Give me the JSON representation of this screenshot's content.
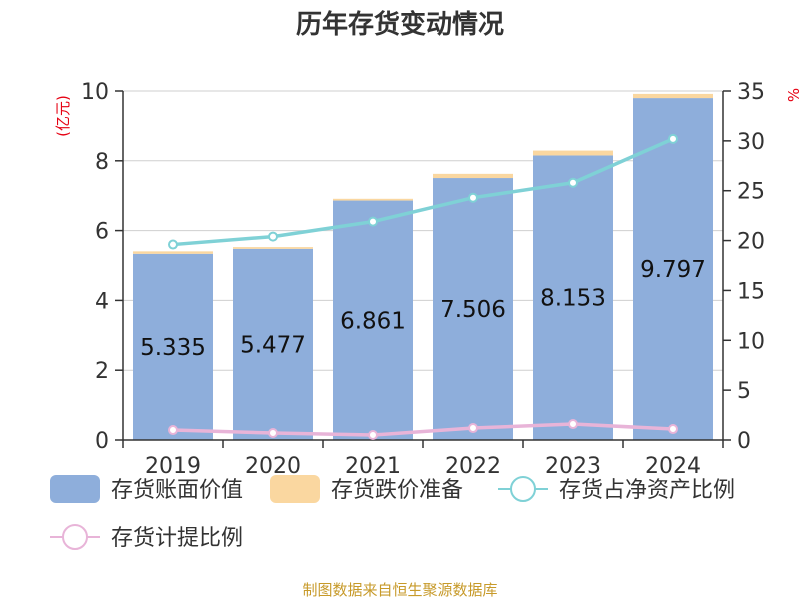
{
  "chart_data": {
    "type": "bar",
    "title": "历年存货变动情况",
    "categories": [
      "2019",
      "2020",
      "2021",
      "2022",
      "2023",
      "2024"
    ],
    "left_axis": {
      "unit": "(亿元)",
      "ylim": [
        0,
        10
      ],
      "ticks": [
        "0",
        "2",
        "4",
        "6",
        "8",
        "10"
      ]
    },
    "right_axis": {
      "unit": "%",
      "ylim": [
        0,
        35
      ],
      "ticks": [
        "0",
        "5",
        "10",
        "15",
        "20",
        "25",
        "30",
        "35"
      ]
    },
    "series": [
      {
        "name": "存货账面价值",
        "kind": "bar",
        "stack": "inv",
        "axis": "left",
        "color": "#8eaedb",
        "values": [
          5.335,
          5.477,
          6.861,
          7.506,
          8.153,
          9.797
        ],
        "labels": [
          "5.335",
          "5.477",
          "6.861",
          "7.506",
          "8.153",
          "9.797"
        ]
      },
      {
        "name": "存货跌价准备",
        "kind": "bar",
        "stack": "inv",
        "axis": "left",
        "color": "#fad7a0",
        "values": [
          0.07,
          0.05,
          0.05,
          0.12,
          0.14,
          0.12
        ]
      },
      {
        "name": "存货占净资产比例",
        "kind": "line",
        "axis": "right",
        "color": "#7fd1d6",
        "values": [
          19.6,
          20.4,
          21.9,
          24.3,
          25.8,
          30.2
        ]
      },
      {
        "name": "存货计提比例",
        "kind": "line",
        "axis": "right",
        "color": "#e8b4d8",
        "values": [
          1.0,
          0.7,
          0.5,
          1.2,
          1.6,
          1.1
        ]
      }
    ],
    "grid": true,
    "legend_position": "bottom",
    "source": "制图数据来自恒生聚源数据库"
  }
}
